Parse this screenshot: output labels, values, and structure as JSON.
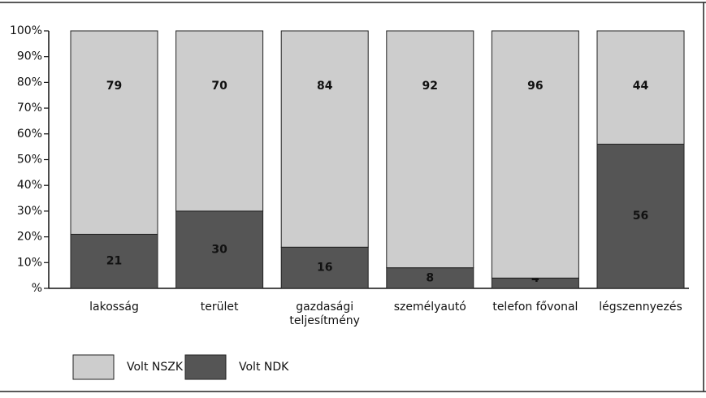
{
  "chart_data": {
    "type": "stacked-bar",
    "categories": [
      "lakosság",
      "terület",
      "gazdasági teljesítmény",
      "személyautó",
      "telefon fővonal",
      "légszennyezés"
    ],
    "series": [
      {
        "name": "Volt NSZK",
        "color": "#cdcdcd",
        "values": [
          79,
          70,
          84,
          92,
          96,
          44
        ]
      },
      {
        "name": "Volt NDK",
        "color": "#555555",
        "values": [
          21,
          30,
          16,
          8,
          4,
          56
        ]
      }
    ],
    "ylim": [
      0,
      100
    ],
    "yticks": [
      {
        "value": 0,
        "label": "%"
      },
      {
        "value": 10,
        "label": "10%"
      },
      {
        "value": 20,
        "label": "20%"
      },
      {
        "value": 30,
        "label": "30%"
      },
      {
        "value": 40,
        "label": "40%"
      },
      {
        "value": 50,
        "label": "50%"
      },
      {
        "value": 60,
        "label": "60%"
      },
      {
        "value": 70,
        "label": "70%"
      },
      {
        "value": 80,
        "label": "80%"
      },
      {
        "value": 90,
        "label": "90%"
      },
      {
        "value": 100,
        "label": "100%"
      }
    ]
  }
}
